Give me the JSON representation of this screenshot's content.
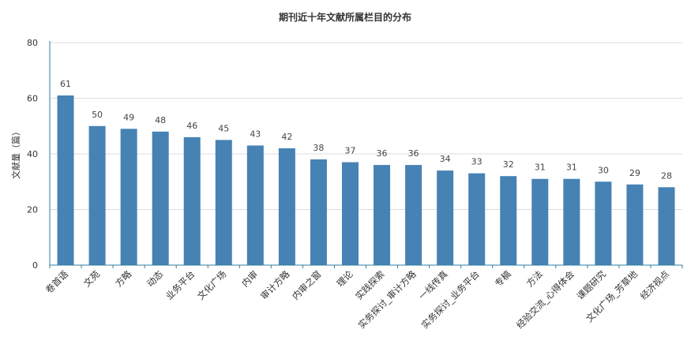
{
  "chart_data": {
    "type": "bar",
    "title": "期刊近十年文献所属栏目的分布",
    "xlabel": "",
    "ylabel": "文献量（篇）",
    "ylim": [
      0,
      80
    ],
    "yticks": [
      0,
      20,
      40,
      60,
      80
    ],
    "grid": true,
    "bar_color": "#4682b4",
    "categories": [
      "卷首语",
      "文苑",
      "方略",
      "动态",
      "业务平台",
      "文化广场",
      "内审",
      "审计方略",
      "内审之窗",
      "理论",
      "实践探索",
      "实务探讨_审计方略",
      "一线传真",
      "实务探讨_业务平台",
      "专稿",
      "方法",
      "经验交流_心得体会",
      "课题研究",
      "文化广场_芳草地",
      "经济视点"
    ],
    "values": [
      61,
      50,
      49,
      48,
      46,
      45,
      43,
      42,
      38,
      37,
      36,
      36,
      34,
      33,
      32,
      31,
      31,
      30,
      29,
      28
    ]
  }
}
